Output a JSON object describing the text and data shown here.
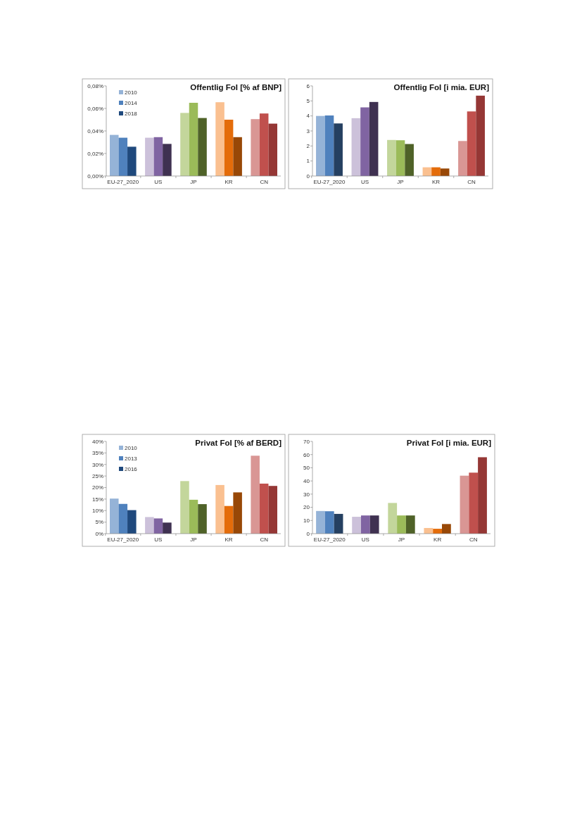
{
  "chart_data": [
    {
      "type": "bar",
      "title": "Offentlig FoI [% af BNP]",
      "categories": [
        "EU-27_2020",
        "US",
        "JP",
        "KR",
        "CN"
      ],
      "ylim": [
        0,
        0.08
      ],
      "yticks": [
        {
          "value": 0,
          "label": "0,00%"
        },
        {
          "value": 0.02,
          "label": "0,02%"
        },
        {
          "value": 0.04,
          "label": "0,04%"
        },
        {
          "value": 0.06,
          "label": "0,06%"
        },
        {
          "value": 0.08,
          "label": "0,08%"
        }
      ],
      "legend": "top left",
      "series": [
        {
          "name": "2010",
          "color": "#95b3d7",
          "colors": [
            "#95b3d7",
            "#ccc1da",
            "#c3d69b",
            "#fac090",
            "#d99694"
          ],
          "values": [
            0.0365,
            0.034,
            0.056,
            0.0655,
            0.0505
          ]
        },
        {
          "name": "2014",
          "color": "#4f81bd",
          "colors": [
            "#4f81bd",
            "#8064a2",
            "#9bbb59",
            "#e46c0a",
            "#c0504d"
          ],
          "values": [
            0.034,
            0.0345,
            0.065,
            0.05,
            0.0555
          ]
        },
        {
          "name": "2018",
          "color": "#1f497d",
          "colors": [
            "#1f497d",
            "#3f3151",
            "#4f6228",
            "#984807",
            "#953735"
          ],
          "values": [
            0.026,
            0.0285,
            0.0515,
            0.0345,
            0.0465
          ]
        }
      ]
    },
    {
      "type": "bar",
      "title": "Offentlig FoI [i mia. EUR]",
      "categories": [
        "EU-27_2020",
        "US",
        "JP",
        "KR",
        "CN"
      ],
      "ylim": [
        0,
        6
      ],
      "yticks": [
        0,
        1,
        2,
        3,
        4,
        5,
        6
      ],
      "series": [
        {
          "colors": [
            "#95b3d7",
            "#ccc1da",
            "#c3d69b",
            "#fac090",
            "#d99694"
          ],
          "values": [
            4.0,
            3.85,
            2.4,
            0.58,
            2.33
          ]
        },
        {
          "colors": [
            "#4f81bd",
            "#8064a2",
            "#9bbb59",
            "#e46c0a",
            "#c0504d"
          ],
          "values": [
            4.03,
            4.57,
            2.38,
            0.58,
            4.3
          ]
        },
        {
          "colors": [
            "#254061",
            "#3f3151",
            "#4f6228",
            "#984807",
            "#953735"
          ],
          "values": [
            3.5,
            4.93,
            2.13,
            0.5,
            5.35
          ]
        }
      ]
    },
    {
      "type": "bar",
      "title": "Privat FoI [% af BERD]",
      "categories": [
        "EU-27_2020",
        "US",
        "JP",
        "KR",
        "CN"
      ],
      "ylim": [
        0,
        40
      ],
      "yticks": [
        {
          "value": 0,
          "label": "0%"
        },
        {
          "value": 5,
          "label": "5%"
        },
        {
          "value": 10,
          "label": "10%"
        },
        {
          "value": 15,
          "label": "15%"
        },
        {
          "value": 20,
          "label": "20%"
        },
        {
          "value": 25,
          "label": "25%"
        },
        {
          "value": 30,
          "label": "30%"
        },
        {
          "value": 35,
          "label": "35%"
        },
        {
          "value": 40,
          "label": "40%"
        }
      ],
      "legend": "top left",
      "series": [
        {
          "name": "2010",
          "color": "#95b3d7",
          "colors": [
            "#95b3d7",
            "#ccc1da",
            "#c3d69b",
            "#fac090",
            "#d99694"
          ],
          "values": [
            15.2,
            7.2,
            22.8,
            21.1,
            33.8
          ]
        },
        {
          "name": "2013",
          "color": "#4f81bd",
          "colors": [
            "#4f81bd",
            "#8064a2",
            "#9bbb59",
            "#e46c0a",
            "#c0504d"
          ],
          "values": [
            12.9,
            6.6,
            14.7,
            12.0,
            21.7
          ]
        },
        {
          "name": "2016",
          "color": "#1f497d",
          "colors": [
            "#1f497d",
            "#3f3151",
            "#4f6228",
            "#984807",
            "#953735"
          ],
          "values": [
            10.2,
            4.8,
            12.8,
            17.9,
            20.7
          ]
        }
      ]
    },
    {
      "type": "bar",
      "title": "Privat FoI [i mia. EUR]",
      "categories": [
        "EU-27_2020",
        "US",
        "JP",
        "KR",
        "CN"
      ],
      "ylim": [
        0,
        70
      ],
      "yticks": [
        0,
        10,
        20,
        30,
        40,
        50,
        60,
        70
      ],
      "series": [
        {
          "colors": [
            "#95b3d7",
            "#ccc1da",
            "#c3d69b",
            "#fac090",
            "#d99694"
          ],
          "values": [
            17.2,
            12.8,
            23.3,
            4.3,
            44
          ]
        },
        {
          "colors": [
            "#4f81bd",
            "#8064a2",
            "#9bbb59",
            "#e46c0a",
            "#c0504d"
          ],
          "values": [
            17.0,
            13.8,
            13.8,
            3.7,
            46.3
          ]
        },
        {
          "colors": [
            "#254061",
            "#3f3151",
            "#4f6228",
            "#984807",
            "#953735"
          ],
          "values": [
            15.0,
            13.8,
            13.8,
            7.3,
            58
          ]
        }
      ]
    }
  ]
}
